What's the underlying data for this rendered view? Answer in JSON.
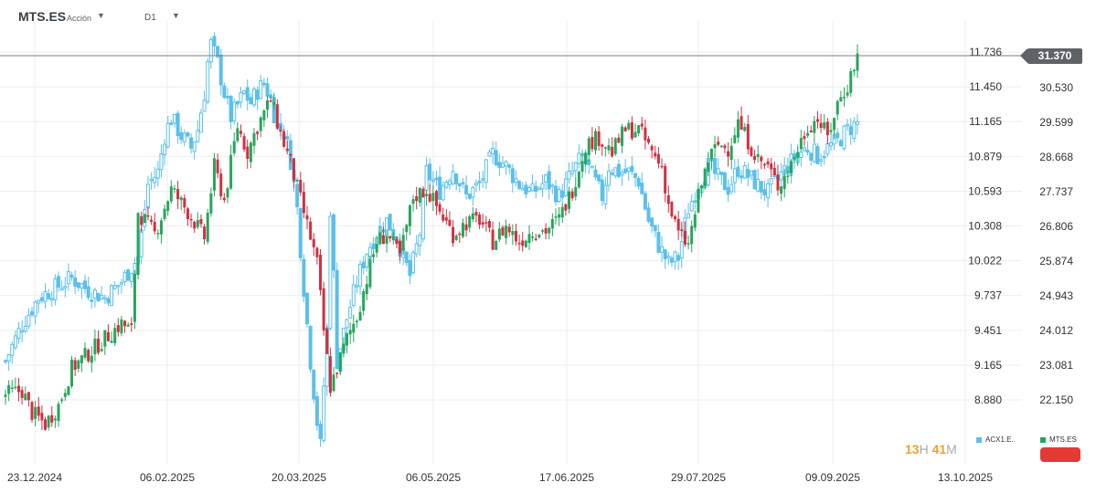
{
  "toolbar": {
    "symbol": "MTS.ES",
    "kind": "Acción",
    "timeframe": "D1",
    "dropdown_icon": "caret-down-icon"
  },
  "colors": {
    "up": "#26a65b",
    "down": "#d32f3f",
    "overlay": "#5bc0eb",
    "grid": "#eeeeee",
    "axis_text": "#333333",
    "badge": "#5f6368"
  },
  "timer": {
    "hours": "13",
    "h_unit": "H",
    "minutes": "41",
    "m_unit": "M"
  },
  "legend": [
    {
      "label": "ACX1.E..",
      "color": "#5bc0eb"
    },
    {
      "label": "MTS.ES",
      "color": "#26a65b"
    }
  ],
  "current_price_label": "31.370",
  "chart_data": {
    "type": "candlestick",
    "title": "",
    "x_ticks": [
      "23.12.2024",
      "06.02.2025",
      "20.03.2025",
      "06.05.2025",
      "17.06.2025",
      "29.07.2025",
      "09.09.2025",
      "13.10.2025"
    ],
    "left_axis": {
      "label": "ACX1.E..",
      "ticks": [
        11.736,
        11.45,
        11.165,
        10.879,
        10.593,
        10.308,
        10.022,
        9.737,
        9.451,
        9.165,
        8.88
      ],
      "tick_labels": [
        "11.736",
        "11.450",
        "11.165",
        "10.879",
        "10.593",
        "10.308",
        "10.022",
        "9.737",
        "9.451",
        "9.165",
        "8.880"
      ]
    },
    "right_axis": {
      "label": "MTS.ES",
      "ticks": [
        30.53,
        29.599,
        28.668,
        27.737,
        26.806,
        25.874,
        24.943,
        24.012,
        23.081,
        22.15
      ],
      "tick_labels": [
        "30.530",
        "29.599",
        "28.668",
        "27.737",
        "26.806",
        "25.874",
        "24.943",
        "24.012",
        "23.081",
        "22.150"
      ]
    },
    "current_price": 31.37,
    "legend_position": "bottom-right",
    "series": [
      {
        "name": "MTS.ES",
        "axis": "right",
        "style": "candle-green-red",
        "waypoints": [
          [
            0,
            22.3
          ],
          [
            5,
            22.4
          ],
          [
            8,
            21.8
          ],
          [
            12,
            21.5
          ],
          [
            16,
            22.0
          ],
          [
            20,
            23.0
          ],
          [
            25,
            23.4
          ],
          [
            30,
            23.8
          ],
          [
            35,
            24.2
          ],
          [
            38,
            24.0
          ],
          [
            40,
            27.2
          ],
          [
            45,
            26.6
          ],
          [
            50,
            27.8
          ],
          [
            55,
            27.2
          ],
          [
            60,
            26.5
          ],
          [
            63,
            28.4
          ],
          [
            66,
            27.5
          ],
          [
            70,
            29.5
          ],
          [
            73,
            28.8
          ],
          [
            76,
            29.5
          ],
          [
            80,
            30.2
          ],
          [
            83,
            29.3
          ],
          [
            86,
            28.5
          ],
          [
            89,
            27.5
          ],
          [
            92,
            26.5
          ],
          [
            94,
            25.8
          ],
          [
            96,
            24.0
          ],
          [
            98,
            22.5
          ],
          [
            100,
            23.0
          ],
          [
            103,
            23.8
          ],
          [
            106,
            24.4
          ],
          [
            109,
            25.4
          ],
          [
            112,
            26.4
          ],
          [
            115,
            26.6
          ],
          [
            119,
            26.0
          ],
          [
            123,
            27.6
          ],
          [
            127,
            27.8
          ],
          [
            131,
            27.2
          ],
          [
            135,
            26.6
          ],
          [
            139,
            26.9
          ],
          [
            143,
            27.0
          ],
          [
            147,
            26.4
          ],
          [
            151,
            26.8
          ],
          [
            155,
            26.4
          ],
          [
            159,
            26.7
          ],
          [
            163,
            26.7
          ],
          [
            167,
            27.0
          ],
          [
            171,
            27.8
          ],
          [
            175,
            29.0
          ],
          [
            179,
            29.2
          ],
          [
            183,
            28.8
          ],
          [
            187,
            29.4
          ],
          [
            191,
            29.4
          ],
          [
            195,
            28.8
          ],
          [
            198,
            28.4
          ],
          [
            200,
            27.4
          ],
          [
            203,
            26.6
          ],
          [
            206,
            26.3
          ],
          [
            209,
            27.6
          ],
          [
            212,
            28.6
          ],
          [
            215,
            29.0
          ],
          [
            218,
            28.9
          ],
          [
            221,
            29.6
          ],
          [
            224,
            29.1
          ],
          [
            227,
            28.6
          ],
          [
            230,
            28.4
          ],
          [
            233,
            27.9
          ],
          [
            236,
            28.3
          ],
          [
            239,
            28.9
          ],
          [
            242,
            29.5
          ],
          [
            245,
            29.7
          ],
          [
            248,
            29.2
          ],
          [
            251,
            30.1
          ],
          [
            254,
            30.6
          ],
          [
            257,
            31.4
          ]
        ]
      },
      {
        "name": "ACX1.E..",
        "axis": "left",
        "style": "hollow-blue",
        "waypoints": [
          [
            0,
            9.2
          ],
          [
            5,
            9.5
          ],
          [
            10,
            9.72
          ],
          [
            15,
            9.8
          ],
          [
            20,
            9.88
          ],
          [
            25,
            9.78
          ],
          [
            30,
            9.72
          ],
          [
            35,
            9.85
          ],
          [
            40,
            10.05
          ],
          [
            43,
            10.65
          ],
          [
            46,
            10.75
          ],
          [
            48,
            11.05
          ],
          [
            50,
            11.2
          ],
          [
            53,
            11.05
          ],
          [
            56,
            10.95
          ],
          [
            58,
            11.1
          ],
          [
            60,
            11.4
          ],
          [
            61,
            11.65
          ],
          [
            62,
            11.8
          ],
          [
            64,
            11.65
          ],
          [
            66,
            11.4
          ],
          [
            68,
            11.2
          ],
          [
            70,
            11.3
          ],
          [
            72,
            11.4
          ],
          [
            74,
            11.32
          ],
          [
            76,
            11.42
          ],
          [
            78,
            11.48
          ],
          [
            80,
            11.35
          ],
          [
            82,
            11.12
          ],
          [
            84,
            11.08
          ],
          [
            86,
            10.85
          ],
          [
            88,
            10.45
          ],
          [
            90,
            9.8
          ],
          [
            92,
            9.2
          ],
          [
            94,
            8.7
          ],
          [
            95,
            8.5
          ],
          [
            96,
            9.0
          ],
          [
            97,
            9.45
          ],
          [
            98,
            10.45
          ],
          [
            99,
            9.9
          ],
          [
            100,
            9.2
          ],
          [
            103,
            9.55
          ],
          [
            106,
            9.85
          ],
          [
            109,
            10.1
          ],
          [
            112,
            10.25
          ],
          [
            115,
            10.35
          ],
          [
            118,
            10.22
          ],
          [
            120,
            10.05
          ],
          [
            122,
            9.9
          ],
          [
            125,
            10.25
          ],
          [
            127,
            10.75
          ],
          [
            131,
            10.6
          ],
          [
            135,
            10.78
          ],
          [
            139,
            10.55
          ],
          [
            143,
            10.65
          ],
          [
            147,
            10.9
          ],
          [
            151,
            10.8
          ],
          [
            155,
            10.65
          ],
          [
            159,
            10.58
          ],
          [
            163,
            10.68
          ],
          [
            167,
            10.55
          ],
          [
            171,
            10.75
          ],
          [
            174,
            10.88
          ],
          [
            177,
            10.72
          ],
          [
            180,
            10.55
          ],
          [
            182,
            10.8
          ],
          [
            185,
            10.75
          ],
          [
            188,
            10.75
          ],
          [
            191,
            10.68
          ],
          [
            194,
            10.35
          ],
          [
            197,
            10.15
          ],
          [
            200,
            10.0
          ],
          [
            203,
            10.05
          ],
          [
            206,
            10.45
          ],
          [
            209,
            10.65
          ],
          [
            212,
            10.8
          ],
          [
            215,
            10.7
          ],
          [
            218,
            10.62
          ],
          [
            221,
            10.78
          ],
          [
            224,
            10.72
          ],
          [
            227,
            10.64
          ],
          [
            230,
            10.58
          ],
          [
            233,
            10.7
          ],
          [
            236,
            10.8
          ],
          [
            239,
            10.9
          ],
          [
            242,
            10.95
          ],
          [
            245,
            10.88
          ],
          [
            248,
            10.95
          ],
          [
            251,
            11.0
          ],
          [
            254,
            11.1
          ],
          [
            257,
            11.15
          ]
        ]
      }
    ]
  }
}
